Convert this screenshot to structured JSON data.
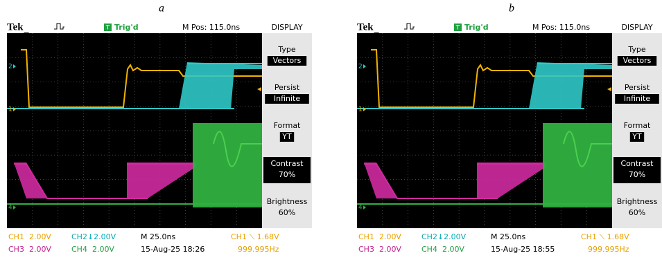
{
  "figure": {
    "panels": [
      {
        "label": "a",
        "header": {
          "brand": "Tek",
          "trigger": "T",
          "status": "Trig'd",
          "position": "M Pos: 115.0ns"
        },
        "channel_markers": [
          "2",
          "1",
          "4"
        ],
        "menu": {
          "title": "DISPLAY",
          "items": [
            {
              "name": "Type",
              "value": "Vectors"
            },
            {
              "name": "Persist",
              "value": "Infinite"
            },
            {
              "name": "Format",
              "value": "YT"
            },
            {
              "name": "Contrast",
              "value": "70%"
            },
            {
              "name": "Brightness",
              "value": "60%"
            }
          ]
        },
        "status": {
          "ch1": "CH1  2.00V",
          "ch2": "CH2↓2.00V",
          "timebase": "M 25.0ns",
          "trigger": "CH1 ⟍ 1.68V",
          "ch3": "CH3  2.00V",
          "ch4": "CH4  2.00V",
          "datetime": "15-Aug-25 18:26",
          "frequency": "999.995Hz"
        }
      },
      {
        "label": "b",
        "header": {
          "brand": "Tek",
          "trigger": "T",
          "status": "Trig'd",
          "position": "M Pos: 115.0ns"
        },
        "channel_markers": [
          "2",
          "1",
          "4"
        ],
        "menu": {
          "title": "DISPLAY",
          "items": [
            {
              "name": "Type",
              "value": "Vectors"
            },
            {
              "name": "Persist",
              "value": "Infinite"
            },
            {
              "name": "Format",
              "value": "YT"
            },
            {
              "name": "Contrast",
              "value": "70%"
            },
            {
              "name": "Brightness",
              "value": "60%"
            }
          ]
        },
        "status": {
          "ch1": "CH1  2.00V",
          "ch2": "CH2↓2.00V",
          "timebase": "M 25.0ns",
          "trigger": "CH1 ⟍ 1.68V",
          "ch3": "CH3  2.00V",
          "ch4": "CH4  2.00V",
          "datetime": "15-Aug-25 18:55",
          "frequency": "999.995Hz"
        }
      }
    ]
  }
}
